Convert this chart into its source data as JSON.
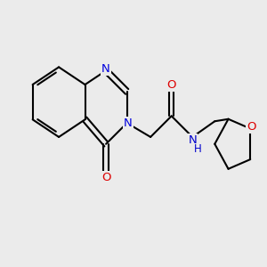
{
  "background_color": "#ebebeb",
  "bond_color": "#000000",
  "bond_width": 1.5,
  "figsize": [
    3.0,
    3.0
  ],
  "dpi": 100,
  "xlim": [
    -0.5,
    9.5
  ],
  "ylim": [
    1.0,
    8.5
  ],
  "N1_color": "#0000dd",
  "N3_color": "#0000dd",
  "NH_color": "#0000cc",
  "O_color": "#dd0000",
  "THF_O_color": "#dd0000"
}
